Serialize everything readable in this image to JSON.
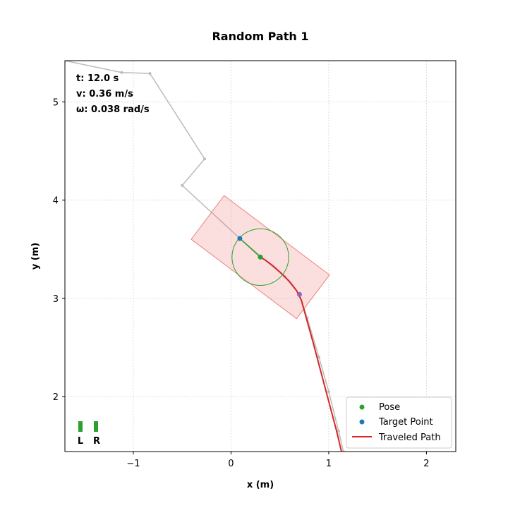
{
  "chart_data": {
    "type": "line",
    "title": "Random Path 1",
    "xlabel": "x (m)",
    "ylabel": "y (m)",
    "xlim": [
      -1.7,
      2.3
    ],
    "ylim": [
      1.44,
      5.42
    ],
    "xticks": [
      -1,
      0,
      1,
      2
    ],
    "yticks": [
      2,
      3,
      4,
      5
    ],
    "xtick_labels": [
      "−1",
      "0",
      "1",
      "2"
    ],
    "ytick_labels": [
      "2",
      "3",
      "4",
      "5"
    ],
    "grid": true,
    "legend_position": "bottom-right",
    "legend": [
      "Pose",
      "Target Point",
      "Traveled Path"
    ],
    "info": {
      "time": "t: 12.0 s",
      "velocity": "v: 0.36 m/s",
      "omega": "ω: 0.038 rad/s"
    },
    "reference_path": {
      "x": [
        -1.7,
        -1.12,
        -0.83,
        -0.27,
        -0.5,
        0.09,
        0.3,
        0.55,
        0.7,
        0.78,
        0.9,
        1.0,
        1.1,
        1.15
      ],
      "y": [
        5.42,
        5.3,
        5.29,
        4.42,
        4.15,
        3.61,
        3.43,
        3.22,
        3.04,
        2.8,
        2.4,
        2.05,
        1.65,
        1.44
      ]
    },
    "traveled_path": {
      "x": [
        1.13,
        1.08,
        1.0,
        0.92,
        0.84,
        0.77,
        0.72,
        0.67,
        0.6,
        0.52,
        0.43,
        0.35,
        0.3
      ],
      "y": [
        1.44,
        1.65,
        1.95,
        2.25,
        2.55,
        2.8,
        2.98,
        3.08,
        3.17,
        3.25,
        3.33,
        3.39,
        3.42
      ]
    },
    "pose": {
      "x": 0.3,
      "y": 3.42,
      "heading_deg": 143
    },
    "target_point": {
      "x": 0.09,
      "y": 3.61
    },
    "extra_point": {
      "x": 0.7,
      "y": 3.04
    },
    "lookahead_radius": 0.29,
    "robot_footprint": {
      "length": 1.35,
      "width": 0.56
    },
    "wheels": {
      "left_label": "L",
      "right_label": "R"
    },
    "colors": {
      "reference": "#bbbbbb",
      "traveled": "#d62728",
      "pose": "#2ca02c",
      "target": "#1f77b4",
      "extra": "#9467bd",
      "footprint_fill": "rgba(240,128,128,0.25)",
      "footprint_edge": "#f08080",
      "grid": "#dddddd"
    }
  }
}
